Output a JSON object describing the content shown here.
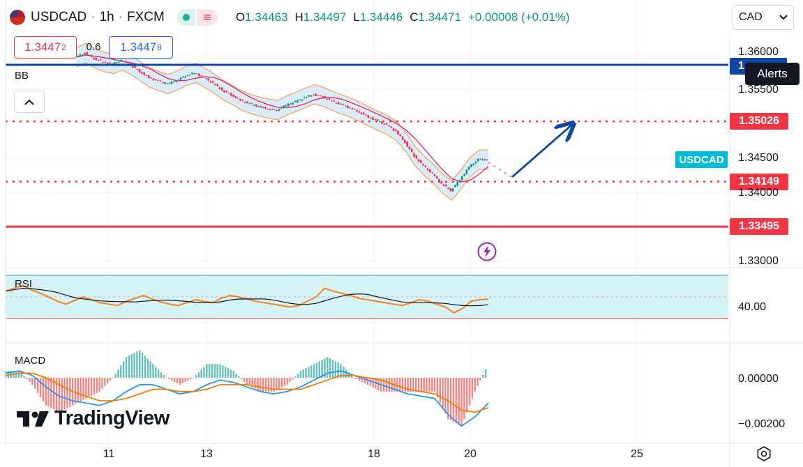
{
  "header": {
    "symbol": "USDCAD",
    "interval": "1h",
    "exchange": "FXCM",
    "open_label": "O",
    "open": "1.34463",
    "high_label": "H",
    "high": "1.34497",
    "low_label": "L",
    "low": "1.34446",
    "close_label": "C",
    "close": "1.34471",
    "change": "+0.00008 (+0.01%)"
  },
  "trade": {
    "sell_main": "1.3447",
    "sell_sup": "2",
    "spread": "0.6",
    "buy_main": "1.3447",
    "buy_sup": "8"
  },
  "currency_selector": "CAD",
  "alerts_tooltip": "Alerts",
  "indicators": {
    "bb": "BB",
    "rsi": "RSI",
    "macd": "MACD"
  },
  "price_tags": [
    {
      "label": "1.35026",
      "price": 1.35026,
      "color": "#f23645"
    },
    {
      "label": "1.34149",
      "price": 1.34149,
      "color": "#f23645"
    },
    {
      "label": "1.33495",
      "price": 1.33495,
      "color": "#f23645"
    }
  ],
  "blue_line_tag": "1",
  "symbol_tag": "USDCAD",
  "y_axis_main": [
    "1.36000",
    "1.35500",
    "1.34500",
    "1.34000",
    "1.33000"
  ],
  "y_axis_rsi": [
    "40.00"
  ],
  "y_axis_macd": [
    "0.00000",
    "−0.00200"
  ],
  "x_axis": [
    "11",
    "13",
    "18",
    "20",
    "25"
  ],
  "logo_text": "TradingView",
  "colors": {
    "support": "#f23645",
    "resistance_blue": "#0d47a1",
    "arrow": "#0d47a1",
    "band_fill": "#cfe6f7",
    "band_edge": "#f5a65b",
    "ma": "#e91e63",
    "rsi_line": "#f7882f",
    "rsi_ma": "#131722",
    "rsi_band": "#d6f3f6",
    "macd": "#2196f3",
    "signal": "#f57c00",
    "hist_pos": "#26a69a",
    "hist_neg": "#ef5350"
  },
  "chart_data": {
    "type": "candlestick",
    "symbol": "USDCAD",
    "timeframe": "1h",
    "price_series": [
      1.3596,
      1.3602,
      1.3594,
      1.3589,
      1.3586,
      1.3591,
      1.3584,
      1.3575,
      1.3566,
      1.3561,
      1.3557,
      1.3562,
      1.3569,
      1.3573,
      1.3566,
      1.3558,
      1.3548,
      1.3541,
      1.3533,
      1.3528,
      1.3524,
      1.3521,
      1.3519,
      1.3526,
      1.3531,
      1.3537,
      1.3542,
      1.3538,
      1.3532,
      1.3527,
      1.3522,
      1.3516,
      1.3509,
      1.3503,
      1.3497,
      1.3488,
      1.3472,
      1.3452,
      1.3438,
      1.3426,
      1.3412,
      1.3402,
      1.3418,
      1.3436,
      1.3447,
      1.3447
    ],
    "horizontal_levels": [
      1.3585,
      1.35026,
      1.34149,
      1.33495
    ],
    "forecast_arrow": {
      "from": 1.34149,
      "to": 1.35026
    },
    "rsi_band": [
      30,
      70
    ],
    "rsi_series": [
      58,
      62,
      66,
      60,
      55,
      50,
      44,
      40,
      45,
      50,
      46,
      42,
      40,
      38,
      44,
      48,
      52,
      47,
      43,
      40,
      38,
      42,
      46,
      44,
      42,
      48,
      52,
      50,
      47,
      44,
      42,
      40,
      38,
      36,
      38,
      44,
      50,
      62,
      58,
      55,
      52,
      48,
      46,
      44,
      42,
      40,
      38,
      42,
      46,
      44,
      40,
      36,
      28,
      34,
      44,
      46,
      47
    ],
    "macd_series": [
      0.0002,
      0.0003,
      0.0001,
      -0.0004,
      -0.0008,
      -0.001,
      -0.0011,
      -0.0012,
      -0.001,
      -0.0006,
      -0.0003,
      -0.0003,
      -0.0005,
      -0.0007,
      -0.0006,
      -0.0003,
      -0.0001,
      -0.0002,
      -0.0004,
      -0.0006,
      -0.0007,
      -0.0006,
      -0.0004,
      -0.0001,
      0.0002,
      0.0003,
      0.0001,
      -0.0001,
      -0.0003,
      -0.0005,
      -0.0007,
      -0.0008,
      -0.0009,
      -0.0016,
      -0.0021,
      -0.0017,
      -0.0011
    ],
    "signal_series": [
      0.0001,
      0.0002,
      0.0002,
      0.0,
      -0.0003,
      -0.0006,
      -0.0008,
      -0.001,
      -0.001,
      -0.0009,
      -0.0007,
      -0.0005,
      -0.0005,
      -0.0006,
      -0.0006,
      -0.0005,
      -0.0003,
      -0.0003,
      -0.0003,
      -0.0004,
      -0.0005,
      -0.0005,
      -0.0005,
      -0.0003,
      -0.0001,
      0.0001,
      0.0001,
      0.0,
      -0.0001,
      -0.0003,
      -0.0005,
      -0.0006,
      -0.0007,
      -0.001,
      -0.0014,
      -0.0015,
      -0.0013
    ]
  }
}
